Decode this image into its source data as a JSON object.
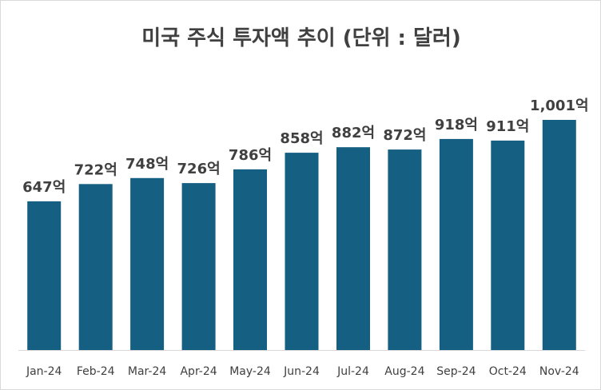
{
  "chart_data": {
    "type": "bar",
    "title": "미국 주식 투자액 추이 (단위 : 달러)",
    "xlabel": "",
    "ylabel": "",
    "categories": [
      "Jan-24",
      "Feb-24",
      "Mar-24",
      "Apr-24",
      "May-24",
      "Jun-24",
      "Jul-24",
      "Aug-24",
      "Sep-24",
      "Oct-24",
      "Nov-24"
    ],
    "values": [
      647,
      722,
      748,
      726,
      786,
      858,
      882,
      872,
      918,
      911,
      1001
    ],
    "data_labels": [
      "647억",
      "722억",
      "748억",
      "726억",
      "786억",
      "858억",
      "882억",
      "872억",
      "918억",
      "911억",
      "1,001억"
    ],
    "ylim": [
      0,
      1100
    ],
    "grid": false,
    "legend": "none",
    "bar_color": "#155f82",
    "axis_color": "#d9d9d9"
  }
}
